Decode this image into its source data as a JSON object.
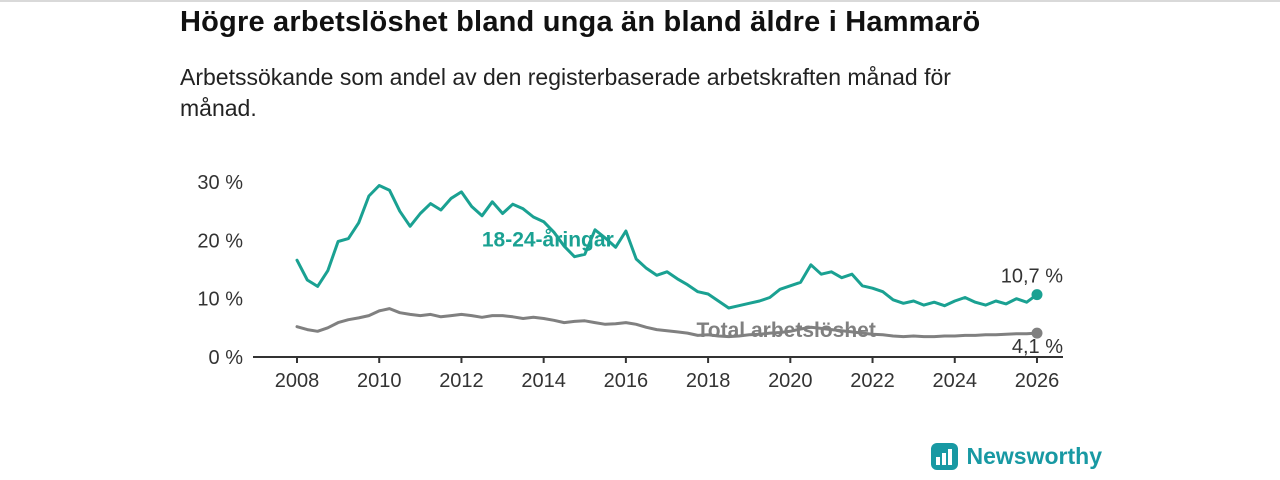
{
  "chart_data": {
    "type": "line",
    "title": "Högre arbetslöshet bland unga än bland äldre i Hammarö",
    "subtitle": "Arbetssökande som andel av den registerbaserade arbetskraften månad för månad.",
    "xlabel": "",
    "ylabel": "",
    "xlim": [
      2007.6,
      2026.8
    ],
    "ylim": [
      0,
      31
    ],
    "grid": false,
    "legend_position": "inline-labels",
    "axis_color": "#333333",
    "text_color": "#333333",
    "xticks": [
      2008,
      2010,
      2012,
      2014,
      2016,
      2018,
      2020,
      2022,
      2024,
      2026
    ],
    "yticks": [
      {
        "value": 0,
        "label": "0 %"
      },
      {
        "value": 10,
        "label": "10 %"
      },
      {
        "value": 20,
        "label": "20 %"
      },
      {
        "value": 30,
        "label": "30 %"
      }
    ],
    "series": [
      {
        "id": "young",
        "name": "18-24-åringar",
        "color": "#1aa192",
        "x_start": 2008,
        "x_step": 0.25,
        "values": [
          16.6,
          13.2,
          12.1,
          14.8,
          19.8,
          20.3,
          23.0,
          27.6,
          29.4,
          28.6,
          25.0,
          22.4,
          24.6,
          26.3,
          25.2,
          27.2,
          28.3,
          25.8,
          24.2,
          26.6,
          24.6,
          26.2,
          25.4,
          24.0,
          23.2,
          21.4,
          19.0,
          17.2,
          17.6,
          21.8,
          20.4,
          18.8,
          21.6,
          16.8,
          15.2,
          14.0,
          14.6,
          13.4,
          12.4,
          11.2,
          10.8,
          9.6,
          8.4,
          8.8,
          9.2,
          9.6,
          10.2,
          11.6,
          12.2,
          12.8,
          15.8,
          14.2,
          14.6,
          13.6,
          14.2,
          12.2,
          11.8,
          11.2,
          9.8,
          9.2,
          9.6,
          8.9,
          9.4,
          8.8,
          9.6,
          10.2,
          9.4,
          8.9,
          9.6,
          9.1,
          10.0,
          9.4,
          10.7
        ],
        "label_pos": {
          "x": 2014.1,
          "y": 20.3
        },
        "end_label": "10,7 %",
        "end_label_position": "above"
      },
      {
        "id": "total",
        "name": "Total arbetslöshet",
        "color": "#808080",
        "x_start": 2008,
        "x_step": 0.25,
        "values": [
          5.2,
          4.7,
          4.4,
          5.0,
          5.9,
          6.4,
          6.7,
          7.1,
          7.9,
          8.3,
          7.6,
          7.3,
          7.1,
          7.3,
          6.9,
          7.1,
          7.3,
          7.1,
          6.8,
          7.1,
          7.1,
          6.9,
          6.6,
          6.8,
          6.6,
          6.3,
          5.9,
          6.1,
          6.2,
          5.9,
          5.6,
          5.7,
          5.9,
          5.6,
          5.1,
          4.7,
          4.5,
          4.3,
          4.1,
          3.7,
          3.8,
          3.6,
          3.5,
          3.6,
          3.8,
          3.9,
          4.1,
          4.2,
          4.4,
          4.8,
          5.1,
          4.9,
          4.7,
          4.5,
          4.3,
          4.1,
          3.9,
          3.8,
          3.6,
          3.5,
          3.6,
          3.5,
          3.5,
          3.6,
          3.6,
          3.7,
          3.7,
          3.8,
          3.8,
          3.9,
          4.0,
          4.0,
          4.1
        ],
        "label_pos": {
          "x": 2019.9,
          "y": 4.8
        },
        "end_label": "4,1 %",
        "end_label_position": "below"
      }
    ]
  },
  "footer": {
    "brand": "Newsworthy",
    "brand_color": "#1899a3"
  }
}
